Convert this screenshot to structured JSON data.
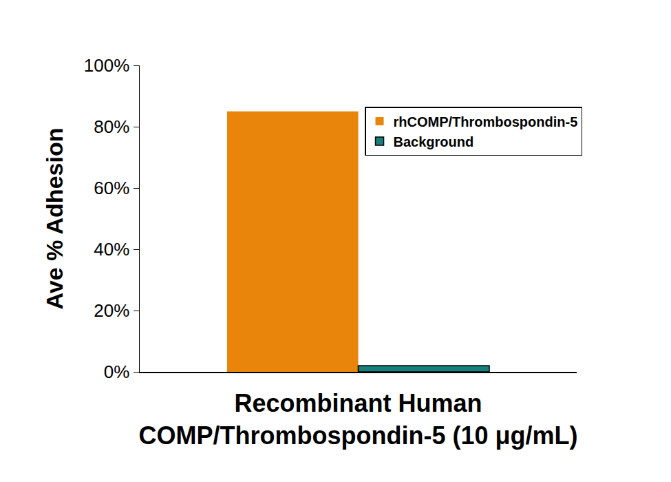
{
  "chart_data": {
    "type": "bar",
    "x_label": "Recombinant Human\nCOMP/Thrombospondin-5 (10 μg/mL)",
    "y_label": "Ave % Adhesion",
    "categories": [
      null
    ],
    "series": [
      {
        "name": "rhCOMP/Thrombospondin-5",
        "color": "#e8850a",
        "values": [
          85
        ]
      },
      {
        "name": "Background",
        "color": "#16807a",
        "values": [
          2
        ]
      }
    ],
    "ylim": [
      0,
      100
    ],
    "yticks": [
      {
        "value": 0,
        "label": "0%"
      },
      {
        "value": 20,
        "label": "20%"
      },
      {
        "value": 40,
        "label": "40%"
      },
      {
        "value": 60,
        "label": "60%"
      },
      {
        "value": 80,
        "label": "80%"
      },
      {
        "value": 100,
        "label": "100%"
      }
    ],
    "grid": false,
    "legend": "top right",
    "tick_labels": "y"
  }
}
